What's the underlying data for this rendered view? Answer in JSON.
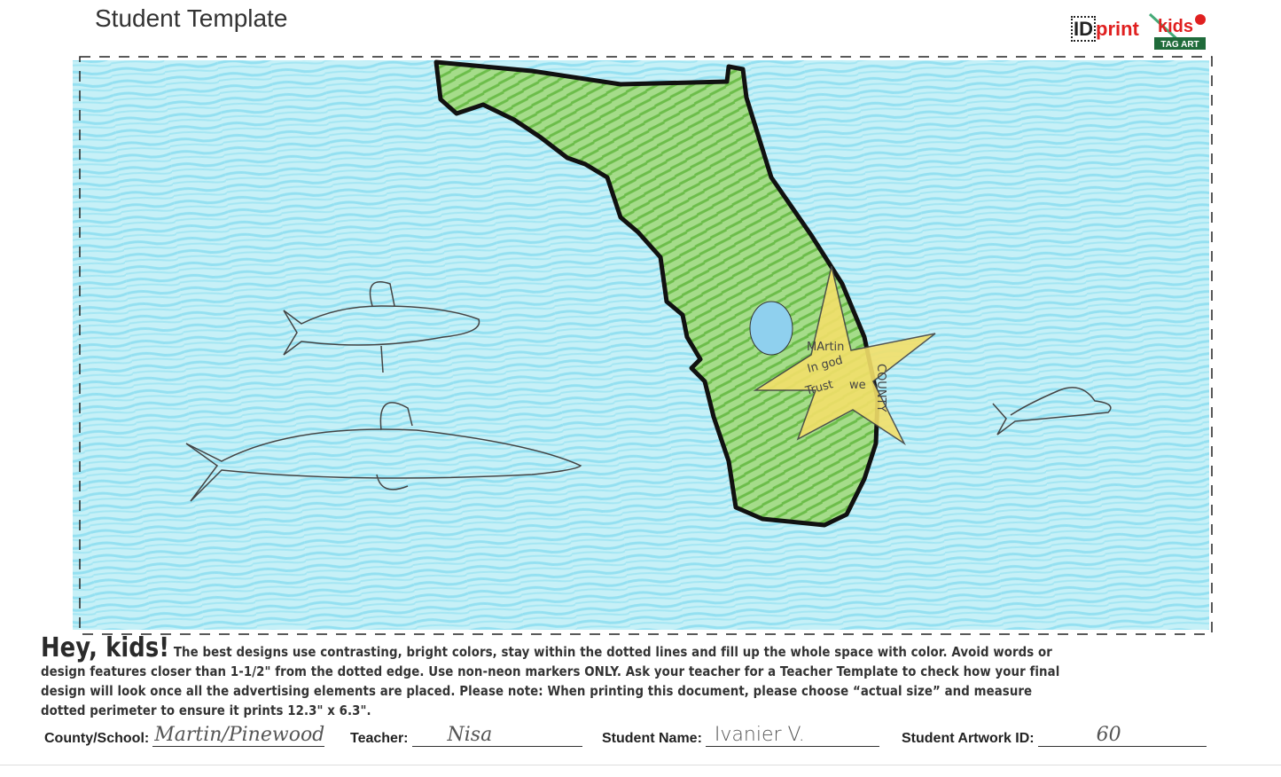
{
  "header": {
    "title": "Student Template",
    "logos": {
      "idprint": {
        "id": "ID",
        "print": "print"
      },
      "kids": "kids",
      "kids_sub": "TAG ART"
    }
  },
  "drawing": {
    "star_text": [
      "MArtin",
      "COUNTY",
      "In god",
      "we",
      "Trust"
    ],
    "colors": {
      "water": "#8fe0f0",
      "land": "#7cc85a",
      "star": "#f3e06a",
      "outline": "#111111"
    }
  },
  "instructions": {
    "hey": "Hey, kids!",
    "text": " The best designs use contrasting, bright colors, stay within the dotted lines and fill up the whole space with color. Avoid words or design features closer than 1-1/2\" from the dotted edge. Use non-neon markers ONLY. Ask your teacher for a Teacher Template to check how your final design will look once all the advertising elements are placed. Please note: When printing this document, please choose “actual size” and measure dotted perimeter to ensure it prints 12.3\" x 6.3\"."
  },
  "fields": {
    "county_label": "County/School:",
    "county_value": "Martin/Pinewood",
    "teacher_label": "Teacher:",
    "teacher_value": "Nisa",
    "student_label": "Student Name:",
    "student_value": "Ivanier   V.",
    "artwork_label": "Student Artwork ID:",
    "artwork_value": "60"
  }
}
